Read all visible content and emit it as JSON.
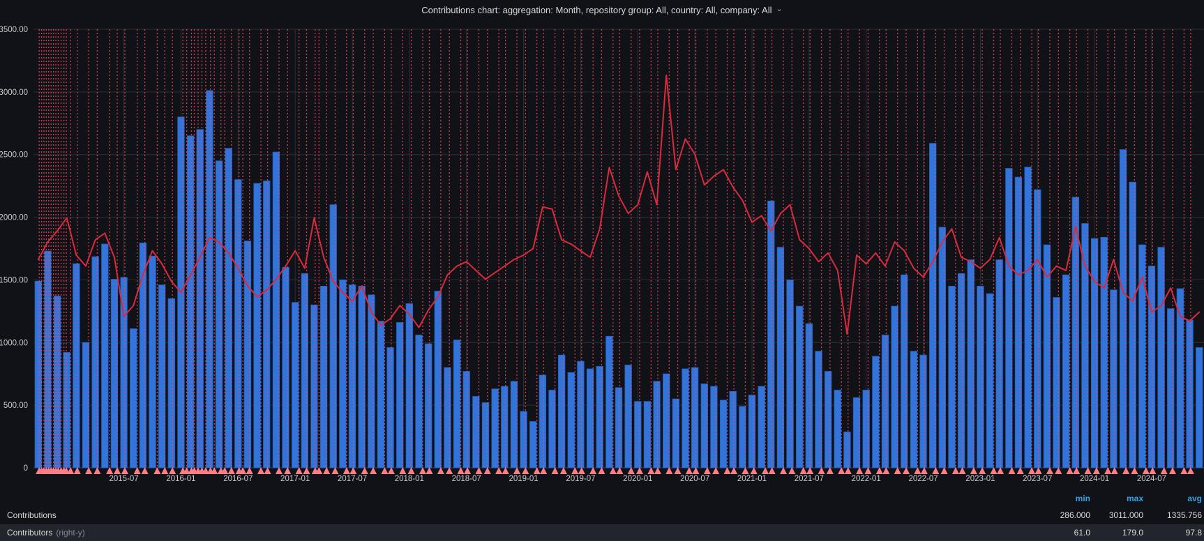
{
  "panel": {
    "title": "Contributions chart: aggregation: Month, repository group: All, country: All, company: All",
    "caret": "⌄"
  },
  "legend": {
    "headers": {
      "min": "min",
      "max": "max",
      "avg": "avg"
    },
    "rows": [
      {
        "label": "Contributions",
        "suffix": "",
        "min": "286.000",
        "max": "3011.000",
        "avg": "1335.756"
      },
      {
        "label": "Contributors",
        "suffix": "(right-y)",
        "min": "61.0",
        "max": "179.0",
        "avg": "97.8"
      }
    ]
  },
  "chart_data": {
    "type": "bar",
    "title": "Contributions chart: aggregation: Month, repository group: All, country: All, company: All",
    "xlabel": "",
    "ylabel": "",
    "left_ylim": [
      0,
      3500
    ],
    "right_ylim": [
      0,
      200
    ],
    "grid": true,
    "legend_position": "bottom-table",
    "y_ticks": [
      0,
      500,
      1000,
      1500,
      2000,
      2500,
      3000,
      3500
    ],
    "y_tick_labels": [
      "0",
      "500.00",
      "1000.00",
      "1500.00",
      "2000.00",
      "2500.00",
      "3000.00",
      "3500.00"
    ],
    "x": [
      "2014-10",
      "2014-11",
      "2014-12",
      "2015-01",
      "2015-02",
      "2015-03",
      "2015-04",
      "2015-05",
      "2015-06",
      "2015-07",
      "2015-08",
      "2015-09",
      "2015-10",
      "2015-11",
      "2015-12",
      "2016-01",
      "2016-02",
      "2016-03",
      "2016-04",
      "2016-05",
      "2016-06",
      "2016-07",
      "2016-08",
      "2016-09",
      "2016-10",
      "2016-11",
      "2016-12",
      "2017-01",
      "2017-02",
      "2017-03",
      "2017-04",
      "2017-05",
      "2017-06",
      "2017-07",
      "2017-08",
      "2017-09",
      "2017-10",
      "2017-11",
      "2017-12",
      "2018-01",
      "2018-02",
      "2018-03",
      "2018-04",
      "2018-05",
      "2018-06",
      "2018-07",
      "2018-08",
      "2018-09",
      "2018-10",
      "2018-11",
      "2018-12",
      "2019-01",
      "2019-02",
      "2019-03",
      "2019-04",
      "2019-05",
      "2019-06",
      "2019-07",
      "2019-08",
      "2019-09",
      "2019-10",
      "2019-11",
      "2019-12",
      "2020-01",
      "2020-02",
      "2020-03",
      "2020-04",
      "2020-05",
      "2020-06",
      "2020-07",
      "2020-08",
      "2020-09",
      "2020-10",
      "2020-11",
      "2020-12",
      "2021-01",
      "2021-02",
      "2021-03",
      "2021-04",
      "2021-05",
      "2021-06",
      "2021-07",
      "2021-08",
      "2021-09",
      "2021-10",
      "2021-11",
      "2021-12",
      "2022-01",
      "2022-02",
      "2022-03",
      "2022-04",
      "2022-05",
      "2022-06",
      "2022-07",
      "2022-08",
      "2022-09",
      "2022-10",
      "2022-11",
      "2022-12",
      "2023-01",
      "2023-02",
      "2023-03",
      "2023-04",
      "2023-05",
      "2023-06",
      "2023-07",
      "2023-08",
      "2023-09",
      "2023-10",
      "2023-11",
      "2023-12",
      "2024-01",
      "2024-02",
      "2024-03",
      "2024-04",
      "2024-05",
      "2024-06",
      "2024-07",
      "2024-08",
      "2024-09",
      "2024-10",
      "2024-11",
      "2024-12"
    ],
    "x_tick_indices": [
      9,
      15,
      21,
      27,
      33,
      39,
      45,
      51,
      57,
      63,
      69,
      75,
      81,
      87,
      93,
      99,
      105,
      111,
      117
    ],
    "series": [
      {
        "name": "Contributions",
        "type": "bar",
        "axis": "left",
        "color": "#3274d9",
        "border_color": "#1f60c4",
        "values": [
          1490,
          1730,
          1371,
          921,
          1629,
          1000,
          1685,
          1786,
          1505,
          1520,
          1110,
          1795,
          1690,
          1460,
          1350,
          2800,
          2650,
          2700,
          3011,
          2450,
          2550,
          2300,
          1810,
          2270,
          2290,
          2520,
          1600,
          1320,
          1550,
          1300,
          1450,
          2100,
          1500,
          1460,
          1450,
          1380,
          1170,
          960,
          1160,
          1310,
          1060,
          990,
          1410,
          800,
          1020,
          770,
          570,
          520,
          630,
          650,
          690,
          450,
          370,
          740,
          620,
          900,
          760,
          850,
          790,
          810,
          1050,
          640,
          820,
          530,
          530,
          690,
          750,
          550,
          790,
          800,
          670,
          650,
          540,
          610,
          490,
          580,
          650,
          2130,
          1760,
          1500,
          1290,
          1150,
          930,
          770,
          620,
          286,
          560,
          620,
          890,
          1060,
          1290,
          1540,
          930,
          900,
          2590,
          1920,
          1450,
          1550,
          1660,
          1450,
          1390,
          1660,
          2390,
          2320,
          2400,
          2220,
          1780,
          1360,
          1540,
          2160,
          1950,
          1830,
          1840,
          1420,
          2540,
          2280,
          1780,
          1610,
          1760,
          1270,
          1430,
          1180,
          960
        ]
      },
      {
        "name": "Contributors",
        "type": "line",
        "axis": "right",
        "color": "#d92b3d",
        "values": [
          95,
          103,
          108,
          114,
          97,
          92,
          104,
          107,
          96,
          69,
          74,
          88,
          99,
          93,
          85,
          80,
          88,
          96,
          105,
          103,
          98,
          91,
          83,
          78,
          81,
          86,
          92,
          99,
          91,
          114,
          96,
          85,
          80,
          76,
          83,
          71,
          65,
          68,
          74,
          70,
          64,
          72,
          78,
          88,
          92,
          94,
          90,
          86,
          89,
          92,
          95,
          97,
          100,
          119,
          118,
          104,
          102,
          99,
          96,
          109,
          137,
          124,
          116,
          120,
          135,
          120,
          179,
          136,
          150,
          143,
          129,
          133,
          136,
          128,
          122,
          112,
          115,
          108,
          116,
          120,
          104,
          100,
          94,
          98,
          90,
          61,
          97,
          93,
          98,
          92,
          103,
          99,
          91,
          87,
          94,
          103,
          109,
          96,
          94,
          91,
          95,
          105,
          92,
          88,
          90,
          95,
          87,
          92,
          90,
          110,
          92,
          85,
          82,
          95,
          80,
          76,
          87,
          71,
          74,
          82,
          69,
          67,
          71
        ]
      }
    ],
    "annotations": {
      "color": "#f2495c",
      "marker_color": "#ff7b86",
      "positions": [
        0.1,
        0.35,
        0.6,
        0.85,
        1.1,
        1.35,
        1.6,
        1.85,
        2.1,
        2.4,
        2.7,
        2.95,
        3.4,
        4.1,
        5.3,
        6.2,
        7.5,
        8.3,
        9.1,
        10.4,
        11.2,
        12.5,
        13.3,
        14.1,
        15.2,
        15.6,
        16.1,
        16.4,
        16.8,
        17.2,
        17.6,
        18.1,
        18.5,
        19.2,
        19.6,
        20.3,
        21.1,
        21.5,
        22.2,
        23.4,
        24.1,
        25.3,
        26.2,
        27.4,
        28.2,
        29.1,
        29.5,
        30.3,
        31.2,
        32.4,
        33.1,
        34.3,
        35.2,
        36.4,
        37.1,
        38.3,
        39.2,
        40.4,
        41.1,
        42.3,
        43.2,
        44.4,
        45.1,
        46.3,
        47.2,
        48.4,
        49.1,
        50.3,
        51.2,
        52.4,
        53.1,
        54.3,
        55.2,
        56.4,
        57.1,
        58.3,
        59.2,
        60.4,
        61.1,
        62.3,
        63.2,
        64.4,
        65.1,
        66.3,
        67.2,
        68.4,
        69.1,
        70.3,
        71.2,
        72.4,
        73.1,
        74.3,
        75.2,
        76.4,
        77.1,
        78.3,
        79.2,
        80.4,
        81.1,
        82.3,
        83.2,
        84.4,
        85.1,
        86.3,
        87.2,
        88.4,
        89.1,
        90.3,
        91.2,
        92.4,
        93.1,
        94.3,
        95.2,
        96.4,
        97.1,
        98.3,
        99.2,
        100.4,
        101.1,
        102.3,
        103.2,
        104.4,
        105.1,
        106.3,
        107.2,
        108.4,
        109.1,
        110.3,
        111.2,
        112.4,
        113.1,
        114.3,
        115.2,
        116.4,
        117.1,
        118.3,
        119.2,
        120.4,
        121.1
      ]
    },
    "style": {
      "background": "#111217",
      "grid_color": "#2c2f36",
      "axis_text_color": "#c8c9cc",
      "zero_line_color": "#3a3d44"
    }
  }
}
